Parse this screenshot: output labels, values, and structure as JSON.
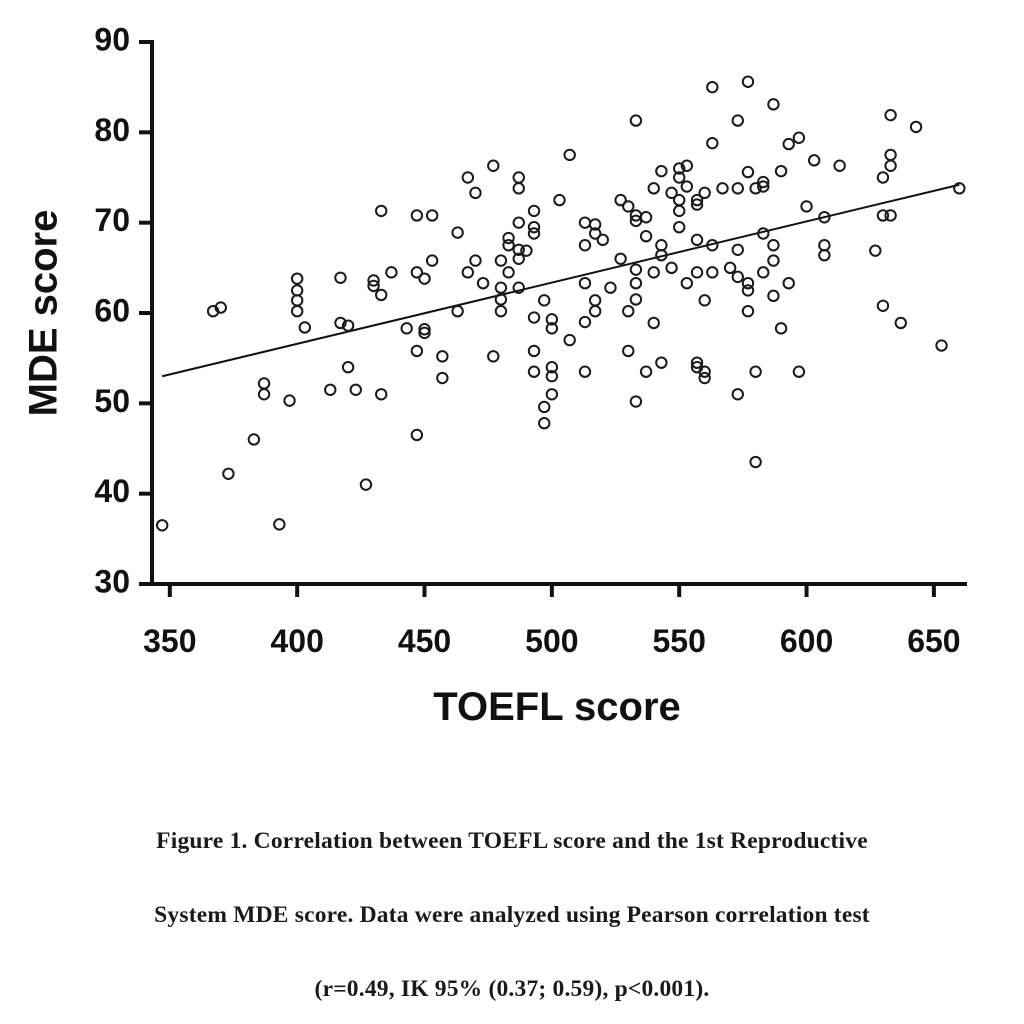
{
  "caption": {
    "line1": "Figure 1. Correlation between TOEFL score and the 1st Reproductive",
    "line2": "System MDE score. Data were analyzed using Pearson correlation test",
    "line3": "(r=0.49, IK 95% (0.37; 0.59), p<0.001)."
  },
  "colors": {
    "ink": "#111111",
    "marker": "#1a1a1a",
    "background": "#ffffff"
  },
  "chart_data": {
    "type": "scatter",
    "xlabel": "TOEFL score",
    "ylabel": "MDE score",
    "xlim": [
      343,
      663
    ],
    "ylim": [
      30,
      90
    ],
    "xticks": [
      350,
      400,
      450,
      500,
      550,
      600,
      650
    ],
    "yticks": [
      30,
      40,
      50,
      60,
      70,
      80,
      90
    ],
    "grid": false,
    "legend": "none",
    "regression_line": {
      "x": [
        347,
        660
      ],
      "y": [
        53.0,
        74.2
      ]
    },
    "points": [
      [
        347,
        36.5
      ],
      [
        367,
        60.2
      ],
      [
        370,
        60.6
      ],
      [
        373,
        42.2
      ],
      [
        383,
        46.0
      ],
      [
        387,
        51.0
      ],
      [
        387,
        52.2
      ],
      [
        393,
        36.6
      ],
      [
        397,
        50.3
      ],
      [
        400,
        63.8
      ],
      [
        400,
        62.5
      ],
      [
        400,
        61.4
      ],
      [
        400,
        60.2
      ],
      [
        403,
        58.4
      ],
      [
        413,
        51.5
      ],
      [
        417,
        63.9
      ],
      [
        417,
        58.9
      ],
      [
        420,
        58.6
      ],
      [
        420,
        54.0
      ],
      [
        423,
        51.5
      ],
      [
        427,
        41.0
      ],
      [
        430,
        63.6
      ],
      [
        430,
        63.0
      ],
      [
        433,
        71.3
      ],
      [
        433,
        62.0
      ],
      [
        433,
        51.0
      ],
      [
        437,
        64.5
      ],
      [
        443,
        58.3
      ],
      [
        447,
        70.8
      ],
      [
        447,
        64.5
      ],
      [
        447,
        55.8
      ],
      [
        447,
        46.5
      ],
      [
        450,
        63.8
      ],
      [
        450,
        58.2
      ],
      [
        450,
        57.8
      ],
      [
        453,
        70.8
      ],
      [
        453,
        65.8
      ],
      [
        457,
        55.2
      ],
      [
        457,
        52.8
      ],
      [
        463,
        68.9
      ],
      [
        463,
        60.2
      ],
      [
        467,
        75.0
      ],
      [
        467,
        64.5
      ],
      [
        470,
        73.3
      ],
      [
        470,
        65.8
      ],
      [
        473,
        63.3
      ],
      [
        477,
        76.3
      ],
      [
        477,
        55.2
      ],
      [
        480,
        65.8
      ],
      [
        480,
        62.8
      ],
      [
        480,
        61.5
      ],
      [
        480,
        60.2
      ],
      [
        483,
        68.3
      ],
      [
        483,
        67.5
      ],
      [
        483,
        64.5
      ],
      [
        487,
        75.0
      ],
      [
        487,
        73.8
      ],
      [
        487,
        70.0
      ],
      [
        487,
        67.0
      ],
      [
        487,
        66.0
      ],
      [
        487,
        62.8
      ],
      [
        490,
        66.9
      ],
      [
        493,
        71.3
      ],
      [
        493,
        69.5
      ],
      [
        493,
        68.8
      ],
      [
        493,
        59.5
      ],
      [
        493,
        55.8
      ],
      [
        493,
        53.5
      ],
      [
        497,
        61.4
      ],
      [
        497,
        49.6
      ],
      [
        497,
        47.8
      ],
      [
        500,
        59.3
      ],
      [
        500,
        58.3
      ],
      [
        500,
        54.0
      ],
      [
        500,
        53.0
      ],
      [
        500,
        51.0
      ],
      [
        503,
        72.5
      ],
      [
        507,
        77.5
      ],
      [
        507,
        57.0
      ],
      [
        513,
        70.0
      ],
      [
        513,
        67.5
      ],
      [
        513,
        63.3
      ],
      [
        513,
        59.0
      ],
      [
        513,
        53.5
      ],
      [
        517,
        69.8
      ],
      [
        517,
        68.8
      ],
      [
        517,
        61.4
      ],
      [
        517,
        60.2
      ],
      [
        520,
        68.1
      ],
      [
        523,
        62.8
      ],
      [
        527,
        72.5
      ],
      [
        527,
        66.0
      ],
      [
        530,
        71.8
      ],
      [
        530,
        60.2
      ],
      [
        530,
        55.8
      ],
      [
        533,
        81.3
      ],
      [
        533,
        70.8
      ],
      [
        533,
        70.2
      ],
      [
        533,
        64.8
      ],
      [
        533,
        63.3
      ],
      [
        533,
        61.5
      ],
      [
        533,
        50.2
      ],
      [
        537,
        70.6
      ],
      [
        537,
        68.5
      ],
      [
        537,
        53.5
      ],
      [
        540,
        73.8
      ],
      [
        540,
        64.5
      ],
      [
        540,
        58.9
      ],
      [
        543,
        75.7
      ],
      [
        543,
        67.5
      ],
      [
        543,
        66.4
      ],
      [
        543,
        54.5
      ],
      [
        547,
        73.3
      ],
      [
        547,
        65.0
      ],
      [
        550,
        76.0
      ],
      [
        550,
        75.0
      ],
      [
        550,
        72.5
      ],
      [
        550,
        71.3
      ],
      [
        550,
        69.5
      ],
      [
        553,
        76.3
      ],
      [
        553,
        74.0
      ],
      [
        553,
        63.3
      ],
      [
        557,
        72.5
      ],
      [
        557,
        72.0
      ],
      [
        557,
        68.1
      ],
      [
        557,
        64.5
      ],
      [
        557,
        54.5
      ],
      [
        557,
        54.0
      ],
      [
        560,
        73.3
      ],
      [
        560,
        61.4
      ],
      [
        560,
        53.5
      ],
      [
        560,
        52.8
      ],
      [
        563,
        85.0
      ],
      [
        563,
        78.8
      ],
      [
        563,
        67.5
      ],
      [
        563,
        64.5
      ],
      [
        567,
        73.8
      ],
      [
        570,
        65.0
      ],
      [
        573,
        81.3
      ],
      [
        573,
        73.8
      ],
      [
        573,
        67.0
      ],
      [
        573,
        64.0
      ],
      [
        573,
        51.0
      ],
      [
        577,
        85.6
      ],
      [
        577,
        75.6
      ],
      [
        577,
        63.3
      ],
      [
        577,
        62.5
      ],
      [
        577,
        60.2
      ],
      [
        580,
        73.8
      ],
      [
        580,
        43.5
      ],
      [
        580,
        53.5
      ],
      [
        583,
        74.5
      ],
      [
        583,
        74.0
      ],
      [
        583,
        68.8
      ],
      [
        583,
        64.5
      ],
      [
        587,
        83.1
      ],
      [
        587,
        67.5
      ],
      [
        587,
        65.8
      ],
      [
        587,
        61.9
      ],
      [
        590,
        75.7
      ],
      [
        590,
        58.3
      ],
      [
        593,
        78.7
      ],
      [
        593,
        63.3
      ],
      [
        597,
        79.4
      ],
      [
        597,
        53.5
      ],
      [
        600,
        71.8
      ],
      [
        603,
        76.9
      ],
      [
        607,
        70.6
      ],
      [
        607,
        67.5
      ],
      [
        607,
        66.4
      ],
      [
        613,
        76.3
      ],
      [
        627,
        66.9
      ],
      [
        630,
        75.0
      ],
      [
        630,
        70.8
      ],
      [
        630,
        60.8
      ],
      [
        633,
        81.9
      ],
      [
        633,
        77.5
      ],
      [
        633,
        76.3
      ],
      [
        633,
        70.8
      ],
      [
        637,
        58.9
      ],
      [
        643,
        80.6
      ],
      [
        653,
        56.4
      ],
      [
        660,
        73.8
      ]
    ]
  }
}
